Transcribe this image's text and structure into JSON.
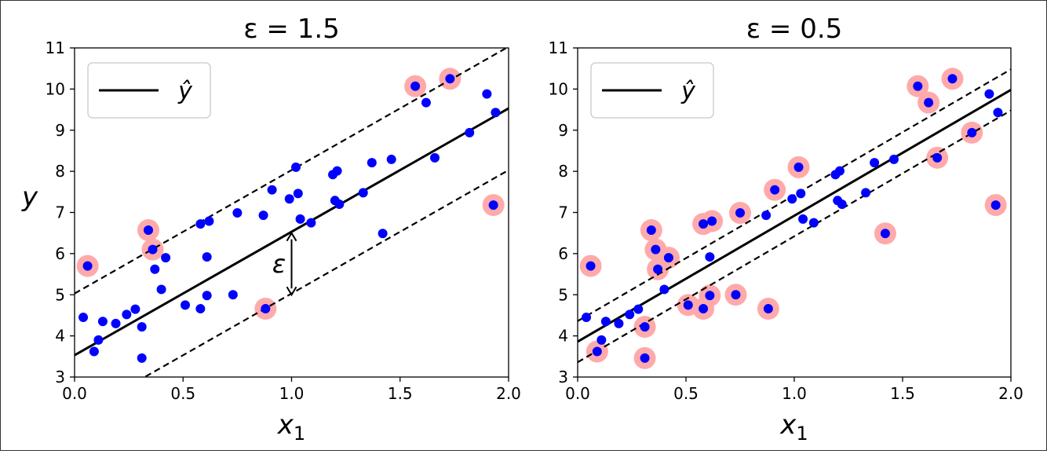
{
  "chart_data": [
    {
      "type": "scatter",
      "title": "ε = 1.5",
      "epsilon": 1.5,
      "xlabel": "x1",
      "ylabel": "y",
      "xlim": [
        0.0,
        2.0
      ],
      "ylim": [
        3,
        11
      ],
      "xticks": [
        "0.0",
        "0.5",
        "1.0",
        "1.5",
        "2.0"
      ],
      "yticks": [
        "3",
        "4",
        "5",
        "6",
        "7",
        "8",
        "9",
        "10",
        "11"
      ],
      "legend": {
        "placement": "top-left",
        "label": "ŷ"
      },
      "epsilon_annotation": {
        "label": "ε",
        "x": 1.0,
        "y_from": 5.0,
        "y_to": 6.5
      },
      "regression_line": {
        "x": [
          0.0,
          2.0
        ],
        "y": [
          3.53,
          9.53
        ]
      },
      "margin_lines": [
        {
          "x": [
            0.0,
            2.0
          ],
          "y": [
            5.03,
            11.03
          ]
        },
        {
          "x": [
            0.0,
            2.0
          ],
          "y": [
            2.03,
            8.03
          ]
        }
      ],
      "points": [
        [
          0.04,
          4.45
        ],
        [
          0.06,
          5.7
        ],
        [
          0.09,
          3.62
        ],
        [
          0.11,
          3.9
        ],
        [
          0.13,
          4.35
        ],
        [
          0.19,
          4.3
        ],
        [
          0.24,
          4.52
        ],
        [
          0.28,
          4.65
        ],
        [
          0.31,
          4.22
        ],
        [
          0.31,
          3.46
        ],
        [
          0.34,
          6.57
        ],
        [
          0.36,
          6.1
        ],
        [
          0.37,
          5.62
        ],
        [
          0.4,
          5.13
        ],
        [
          0.42,
          5.9
        ],
        [
          0.51,
          4.75
        ],
        [
          0.58,
          4.66
        ],
        [
          0.58,
          6.72
        ],
        [
          0.61,
          4.98
        ],
        [
          0.61,
          5.92
        ],
        [
          0.62,
          6.79
        ],
        [
          0.73,
          5.0
        ],
        [
          0.75,
          6.99
        ],
        [
          0.87,
          6.93
        ],
        [
          0.88,
          4.66
        ],
        [
          0.91,
          7.55
        ],
        [
          0.99,
          7.33
        ],
        [
          1.02,
          8.1
        ],
        [
          1.03,
          7.46
        ],
        [
          1.04,
          6.84
        ],
        [
          1.09,
          6.75
        ],
        [
          1.19,
          7.92
        ],
        [
          1.2,
          7.29
        ],
        [
          1.21,
          8.01
        ],
        [
          1.22,
          7.2
        ],
        [
          1.33,
          7.48
        ],
        [
          1.37,
          8.21
        ],
        [
          1.42,
          6.49
        ],
        [
          1.46,
          8.29
        ],
        [
          1.57,
          10.07
        ],
        [
          1.62,
          9.67
        ],
        [
          1.66,
          8.33
        ],
        [
          1.73,
          10.25
        ],
        [
          1.82,
          8.94
        ],
        [
          1.9,
          9.88
        ],
        [
          1.93,
          7.18
        ],
        [
          1.94,
          9.43
        ]
      ],
      "highlighted": [
        [
          0.06,
          5.7
        ],
        [
          0.34,
          6.57
        ],
        [
          0.36,
          6.1
        ],
        [
          0.88,
          4.66
        ],
        [
          1.57,
          10.07
        ],
        [
          1.73,
          10.25
        ],
        [
          1.93,
          7.18
        ]
      ],
      "colors": {
        "points": "#0000ff",
        "highlight": "#ffaaaa",
        "line": "#000000"
      }
    },
    {
      "type": "scatter",
      "title": "ε = 0.5",
      "epsilon": 0.5,
      "xlabel": "x1",
      "ylabel": "",
      "xlim": [
        0.0,
        2.0
      ],
      "ylim": [
        3,
        11
      ],
      "xticks": [
        "0.0",
        "0.5",
        "1.0",
        "1.5",
        "2.0"
      ],
      "yticks": [
        "3",
        "4",
        "5",
        "6",
        "7",
        "8",
        "9",
        "10",
        "11"
      ],
      "legend": {
        "placement": "top-left",
        "label": "ŷ"
      },
      "regression_line": {
        "x": [
          0.0,
          2.0
        ],
        "y": [
          3.86,
          9.98
        ]
      },
      "margin_lines": [
        {
          "x": [
            0.0,
            2.0
          ],
          "y": [
            4.36,
            10.48
          ]
        },
        {
          "x": [
            0.0,
            2.0
          ],
          "y": [
            3.36,
            9.48
          ]
        }
      ],
      "points": [
        [
          0.04,
          4.45
        ],
        [
          0.06,
          5.7
        ],
        [
          0.09,
          3.62
        ],
        [
          0.11,
          3.9
        ],
        [
          0.13,
          4.35
        ],
        [
          0.19,
          4.3
        ],
        [
          0.24,
          4.52
        ],
        [
          0.28,
          4.65
        ],
        [
          0.31,
          4.22
        ],
        [
          0.31,
          3.46
        ],
        [
          0.34,
          6.57
        ],
        [
          0.36,
          6.1
        ],
        [
          0.37,
          5.62
        ],
        [
          0.4,
          5.13
        ],
        [
          0.42,
          5.9
        ],
        [
          0.51,
          4.75
        ],
        [
          0.58,
          4.66
        ],
        [
          0.58,
          6.72
        ],
        [
          0.61,
          4.98
        ],
        [
          0.61,
          5.92
        ],
        [
          0.62,
          6.79
        ],
        [
          0.73,
          5.0
        ],
        [
          0.75,
          6.99
        ],
        [
          0.87,
          6.93
        ],
        [
          0.88,
          4.66
        ],
        [
          0.91,
          7.55
        ],
        [
          0.99,
          7.33
        ],
        [
          1.02,
          8.1
        ],
        [
          1.03,
          7.46
        ],
        [
          1.04,
          6.84
        ],
        [
          1.09,
          6.75
        ],
        [
          1.19,
          7.92
        ],
        [
          1.2,
          7.29
        ],
        [
          1.21,
          8.01
        ],
        [
          1.22,
          7.2
        ],
        [
          1.33,
          7.48
        ],
        [
          1.37,
          8.21
        ],
        [
          1.42,
          6.49
        ],
        [
          1.46,
          8.29
        ],
        [
          1.57,
          10.07
        ],
        [
          1.62,
          9.67
        ],
        [
          1.66,
          8.33
        ],
        [
          1.73,
          10.25
        ],
        [
          1.82,
          8.94
        ],
        [
          1.9,
          9.88
        ],
        [
          1.93,
          7.18
        ],
        [
          1.94,
          9.43
        ]
      ],
      "highlighted": [
        [
          0.06,
          5.7
        ],
        [
          0.09,
          3.62
        ],
        [
          0.31,
          4.22
        ],
        [
          0.31,
          3.46
        ],
        [
          0.34,
          6.57
        ],
        [
          0.36,
          6.1
        ],
        [
          0.37,
          5.62
        ],
        [
          0.42,
          5.9
        ],
        [
          0.51,
          4.75
        ],
        [
          0.58,
          4.66
        ],
        [
          0.58,
          6.72
        ],
        [
          0.61,
          4.98
        ],
        [
          0.62,
          6.79
        ],
        [
          0.73,
          5.0
        ],
        [
          0.75,
          6.99
        ],
        [
          0.88,
          4.66
        ],
        [
          0.91,
          7.55
        ],
        [
          1.02,
          8.1
        ],
        [
          1.42,
          6.49
        ],
        [
          1.57,
          10.07
        ],
        [
          1.62,
          9.67
        ],
        [
          1.66,
          8.33
        ],
        [
          1.73,
          10.25
        ],
        [
          1.82,
          8.94
        ],
        [
          1.93,
          7.18
        ]
      ],
      "colors": {
        "points": "#0000ff",
        "highlight": "#ffaaaa",
        "line": "#000000"
      }
    }
  ]
}
